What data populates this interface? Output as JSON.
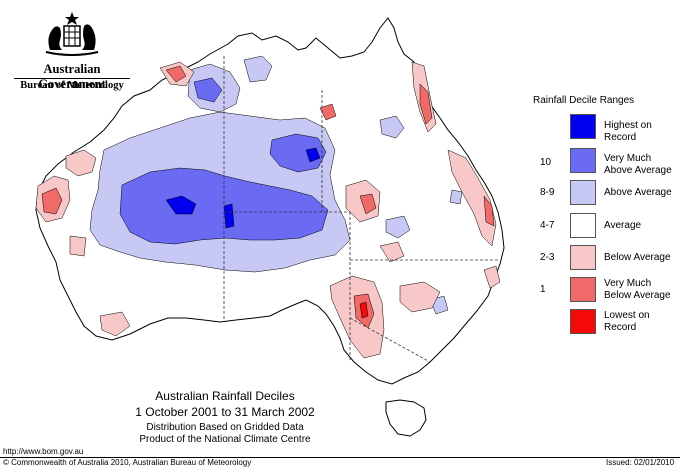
{
  "header": {
    "gov_name": "Australian Government",
    "bureau_name": "Bureau of Meteorology"
  },
  "legend": {
    "title": "Rainfall Decile Ranges",
    "items": [
      {
        "label_line1": "Highest on",
        "label_line2": "Record",
        "range": "",
        "color": "#0000ee"
      },
      {
        "label_line1": "Very Much",
        "label_line2": "Above Average",
        "range": "10",
        "color": "#6a6af2"
      },
      {
        "label_line1": "Above Average",
        "label_line2": "",
        "range": "8-9",
        "color": "#c8c8f5"
      },
      {
        "label_line1": "Average",
        "label_line2": "",
        "range": "4-7",
        "color": "#ffffff"
      },
      {
        "label_line1": "Below Average",
        "label_line2": "",
        "range": "2-3",
        "color": "#f8c8c8"
      },
      {
        "label_line1": "Very Much",
        "label_line2": "Below Average",
        "range": "1",
        "color": "#f06a6a"
      },
      {
        "label_line1": "Lowest on",
        "label_line2": "Record",
        "range": "",
        "color": "#f50a0a"
      }
    ]
  },
  "caption": {
    "title": "Australian Rainfall Deciles",
    "dates": "1 October 2001 to 31 March 2002",
    "line1": "Distribution Based on Gridded Data",
    "line2": "Product of the National Climate Centre"
  },
  "footer": {
    "url": "http://www.bom.gov.au",
    "copyright": "© Commonwealth of Australia 2010, Australian Bureau of Meteorology",
    "issued": "Issued: 02/01/2010"
  }
}
